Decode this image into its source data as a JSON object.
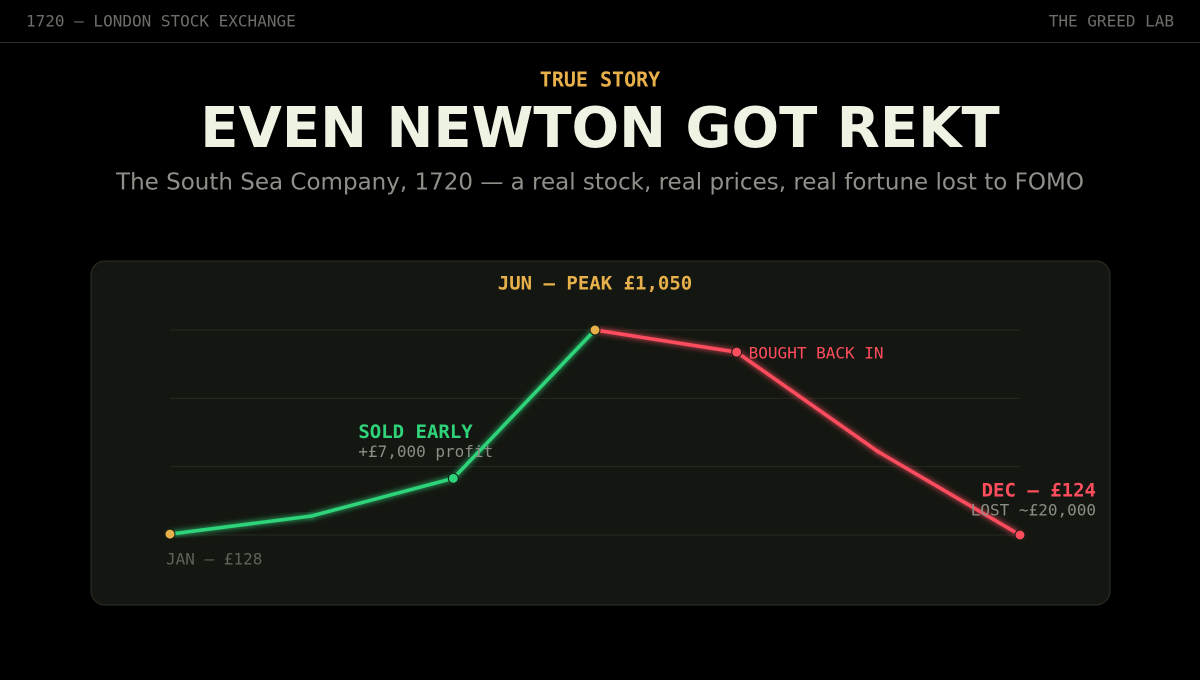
{
  "header": {
    "left": "1720 — LONDON STOCK EXCHANGE",
    "right": "THE GREED LAB"
  },
  "kicker": "TRUE STORY",
  "title": "EVEN NEWTON GOT REKT",
  "subtitle": "The South Sea Company, 1720 — a real stock, real prices, real fortune lost to FOMO",
  "chart_data": {
    "type": "line",
    "categories": [
      null,
      null,
      null,
      null,
      null,
      null,
      null
    ],
    "values": [
      128,
      210,
      380,
      1050,
      950,
      500,
      124
    ],
    "ylim": [
      124,
      1050
    ],
    "color": "#2fd47a",
    "decline_color": "#ff4d5e",
    "highlight_color": "#e8b04a",
    "annotations": {
      "start": "JAN — £128",
      "sold": "SOLD EARLY",
      "profit": "+£7,000 profit",
      "peak": "JUN — PEAK £1,050",
      "rebuy": "BOUGHT BACK IN",
      "end": "DEC — £124",
      "loss": "LOST ~£20,000"
    }
  }
}
